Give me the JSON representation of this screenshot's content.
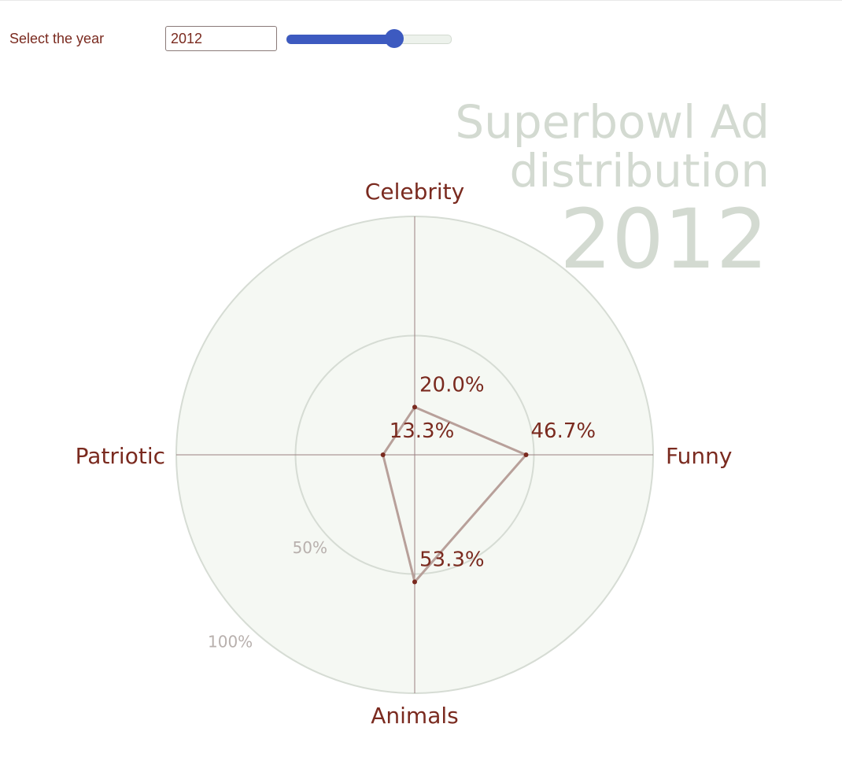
{
  "controls": {
    "year_label": "Select the year",
    "year_value": "2012",
    "slider_fraction": 0.6
  },
  "chart_data": {
    "type": "radar",
    "title_line1": "Superbowl Ad",
    "title_line2": "distribution",
    "year": "2012",
    "axes": [
      "Celebrity",
      "Funny",
      "Animals",
      "Patriotic"
    ],
    "values": [
      20.0,
      46.7,
      53.3,
      13.3
    ],
    "value_labels": [
      "20.0%",
      "46.7%",
      "53.3%",
      "13.3%"
    ],
    "rlim": [
      0,
      100
    ],
    "ring_labels": [
      "50%",
      "100%"
    ],
    "colors": {
      "text": "#7a2a1f",
      "polygon": "#b8a09a",
      "disc": "#f5f8f3",
      "ring": "#d6dcd4",
      "ring_label": "#b8b0ad",
      "axis_line": "#9a8080",
      "title": "#d3dad1"
    }
  }
}
